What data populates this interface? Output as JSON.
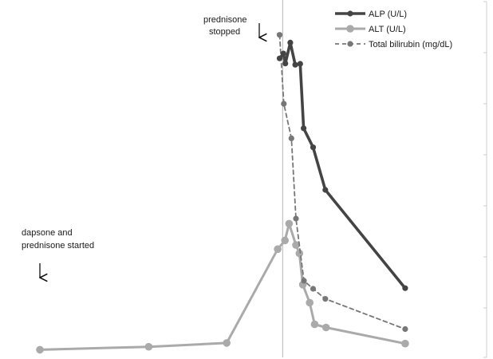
{
  "chart_data": {
    "type": "line",
    "title": "",
    "xlabel": "",
    "ylabel": "",
    "grid": false,
    "legend_position": "top-right",
    "x_axis_visible": false,
    "y_axis_visible": false,
    "xlim": [
      0,
      100
    ],
    "ylim": [
      0,
      100
    ],
    "x_note": "relative time position (no axis labels shown)",
    "series": [
      {
        "name": "ALP (U/L)",
        "color": "#444444",
        "style": "solid",
        "points": [
          [
            63.0,
            90.8
          ],
          [
            64.0,
            92.3
          ],
          [
            64.5,
            89.2
          ],
          [
            65.8,
            95.7
          ],
          [
            67.1,
            88.8
          ],
          [
            68.4,
            89.1
          ],
          [
            69.3,
            69.1
          ],
          [
            71.8,
            63.2
          ],
          [
            75.0,
            50.0
          ],
          [
            96.0,
            19.5
          ]
        ]
      },
      {
        "name": "ALT (U/L)",
        "color": "#aaaaaa",
        "style": "solid",
        "points": [
          [
            0.0,
            0.4
          ],
          [
            28.6,
            1.3
          ],
          [
            49.1,
            2.5
          ],
          [
            62.5,
            31.6
          ],
          [
            64.4,
            34.3
          ],
          [
            65.5,
            39.5
          ],
          [
            67.3,
            32.9
          ],
          [
            68.2,
            30.3
          ],
          [
            69.1,
            20.6
          ],
          [
            70.9,
            15.0
          ],
          [
            72.2,
            8.3
          ],
          [
            75.2,
            7.3
          ],
          [
            96.0,
            2.3
          ]
        ]
      },
      {
        "name": "Total bilirubin (mg/dL)",
        "color": "#777777",
        "style": "dashed",
        "points": [
          [
            63.0,
            98.1
          ],
          [
            64.1,
            76.7
          ],
          [
            66.1,
            66.0
          ],
          [
            67.3,
            41.1
          ],
          [
            69.4,
            21.8
          ],
          [
            71.8,
            19.3
          ],
          [
            75.0,
            16.2
          ],
          [
            96.0,
            6.8
          ]
        ]
      }
    ],
    "annotations": [
      {
        "lines": [
          "prednisone",
          "stopped"
        ],
        "arrow": "down",
        "x": 60,
        "marker_line": true,
        "marker_x": 63.8
      },
      {
        "lines": [
          "dapsone and",
          "prednisone started"
        ],
        "arrow": "down",
        "x": 3
      }
    ]
  }
}
